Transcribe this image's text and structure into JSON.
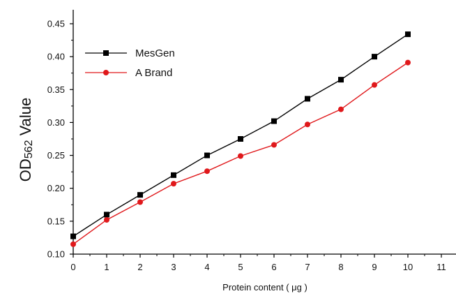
{
  "chart_data": {
    "type": "line",
    "title": "",
    "xlabel": "Protein content ( μg )",
    "ylabel_main": "OD",
    "ylabel_sub": "562",
    "ylabel_suffix": " Value",
    "xlim": [
      0,
      11
    ],
    "ylim": [
      0.1,
      0.45
    ],
    "xticks": [
      0,
      1,
      2,
      3,
      4,
      5,
      6,
      7,
      8,
      9,
      10,
      11
    ],
    "xtick_labels": [
      "0",
      "1",
      "2",
      "3",
      "4",
      "5",
      "6",
      "7",
      "8",
      "9",
      "10",
      "11"
    ],
    "yticks": [
      0.1,
      0.15,
      0.2,
      0.25,
      0.3,
      0.35,
      0.4,
      0.45
    ],
    "ytick_labels": [
      "0.10",
      "0.15",
      "0.20",
      "0.25",
      "0.30",
      "0.35",
      "0.40",
      "0.45"
    ],
    "grid": false,
    "legend_position": "top-left",
    "x": [
      0,
      1,
      2,
      3,
      4,
      5,
      6,
      7,
      8,
      9,
      10
    ],
    "series": [
      {
        "name": "MesGen",
        "color": "#000000",
        "marker": "square",
        "values": [
          0.127,
          0.16,
          0.19,
          0.22,
          0.25,
          0.275,
          0.302,
          0.336,
          0.365,
          0.4,
          0.434
        ]
      },
      {
        "name": "A Brand",
        "color": "#e0181b",
        "marker": "circle",
        "values": [
          0.115,
          0.152,
          0.179,
          0.207,
          0.226,
          0.249,
          0.266,
          0.297,
          0.32,
          0.357,
          0.391
        ]
      }
    ]
  }
}
